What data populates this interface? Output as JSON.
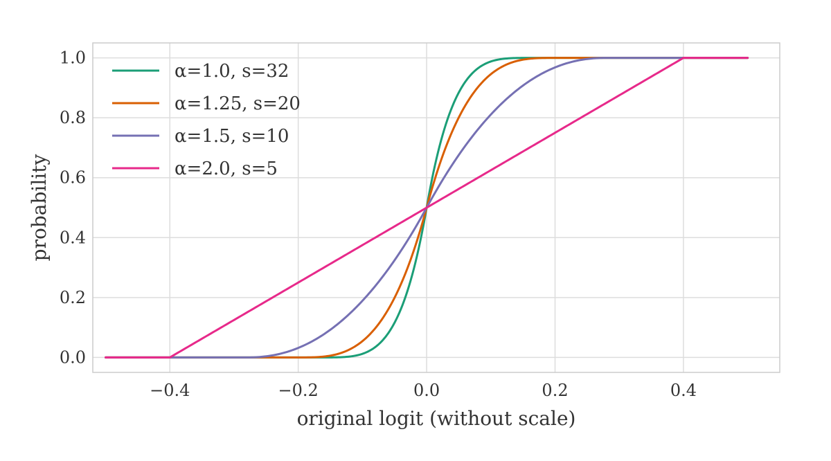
{
  "chart_data": {
    "type": "line",
    "title": "",
    "xlabel": "original logit (without scale)",
    "ylabel": "probability",
    "xlim": [
      -0.52,
      0.55
    ],
    "ylim": [
      -0.05,
      1.05
    ],
    "xticks": [
      -0.4,
      -0.2,
      0.0,
      0.2,
      0.4
    ],
    "xtick_labels": [
      "−0.4",
      "−0.2",
      "0.0",
      "0.2",
      "0.4"
    ],
    "yticks": [
      0.0,
      0.2,
      0.4,
      0.6,
      0.8,
      1.0
    ],
    "ytick_labels": [
      "0.0",
      "0.2",
      "0.4",
      "0.6",
      "0.8",
      "1.0"
    ],
    "grid": true,
    "legend_position": "top-left",
    "x_domain": [
      -0.5,
      0.5
    ],
    "series": [
      {
        "name": "α=1.0, s=32",
        "alpha": 1.0,
        "s": 32,
        "color": "#1b9e77"
      },
      {
        "name": "α=1.25, s=20",
        "alpha": 1.25,
        "s": 20,
        "color": "#d95f02"
      },
      {
        "name": "α=1.5, s=10",
        "alpha": 1.5,
        "s": 10,
        "color": "#7570b3"
      },
      {
        "name": "α=2.0, s=5",
        "alpha": 2.0,
        "s": 5,
        "color": "#e7298a"
      }
    ]
  }
}
